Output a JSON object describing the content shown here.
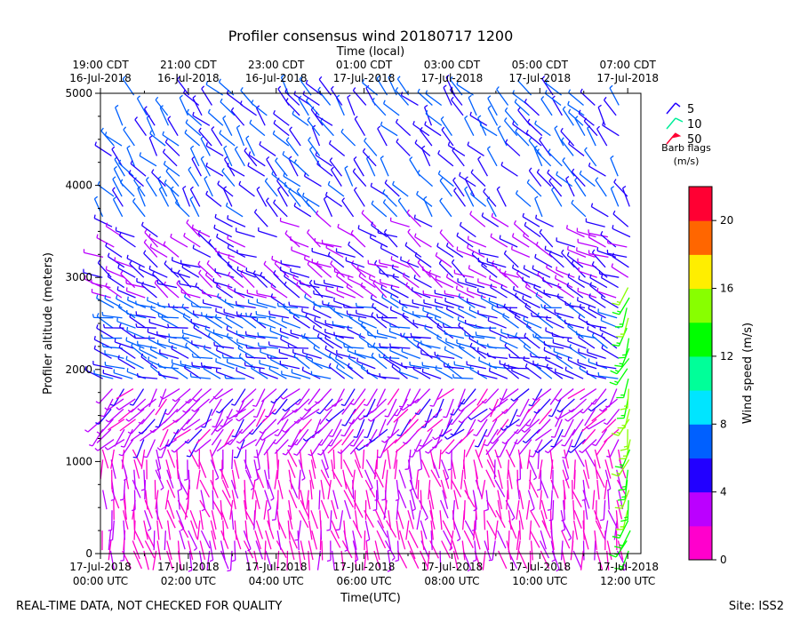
{
  "chart_data": {
    "type": "wind-barb-profile",
    "title": "Profiler consensus wind 20180717 1200",
    "xlabel": "Time(UTC)",
    "xlabel_top": "Time (local)",
    "ylabel": "Profiler altitude (meters)",
    "xlim": [
      0,
      12.3
    ],
    "ylim": [
      0,
      5000
    ],
    "y_ticks": [
      0,
      1000,
      2000,
      3000,
      4000,
      5000
    ],
    "x_ticks_utc": [
      {
        "hour": 0,
        "date": "17-Jul-2018",
        "time": "00:00 UTC"
      },
      {
        "hour": 2,
        "date": "17-Jul-2018",
        "time": "02:00 UTC"
      },
      {
        "hour": 4,
        "date": "17-Jul-2018",
        "time": "04:00 UTC"
      },
      {
        "hour": 6,
        "date": "17-Jul-2018",
        "time": "06:00 UTC"
      },
      {
        "hour": 8,
        "date": "17-Jul-2018",
        "time": "08:00 UTC"
      },
      {
        "hour": 10,
        "date": "17-Jul-2018",
        "time": "10:00 UTC"
      },
      {
        "hour": 12,
        "date": "17-Jul-2018",
        "time": "12:00 UTC"
      }
    ],
    "x_ticks_local": [
      {
        "hour": 0,
        "time": "19:00 CDT",
        "date": "16-Jul-2018"
      },
      {
        "hour": 2,
        "time": "21:00 CDT",
        "date": "16-Jul-2018"
      },
      {
        "hour": 4,
        "time": "23:00 CDT",
        "date": "16-Jul-2018"
      },
      {
        "hour": 6,
        "time": "01:00 CDT",
        "date": "17-Jul-2018"
      },
      {
        "hour": 8,
        "time": "03:00 CDT",
        "date": "17-Jul-2018"
      },
      {
        "hour": 10,
        "time": "05:00 CDT",
        "date": "17-Jul-2018"
      },
      {
        "hour": 12,
        "time": "07:00 CDT",
        "date": "17-Jul-2018"
      }
    ],
    "barb_legend": {
      "items": [
        {
          "label": "5",
          "speed": 5,
          "color": "#2200ff"
        },
        {
          "label": "10",
          "speed": 10,
          "color": "#00ee99"
        },
        {
          "label": "50",
          "speed": 50,
          "color": "#ff0033"
        }
      ],
      "caption_line1": "Barb flags",
      "caption_line2": "(m/s)"
    },
    "colorbar": {
      "label": "Wind speed (m/s)",
      "min": 0,
      "max": 22,
      "ticks": [
        0,
        4,
        8,
        12,
        16,
        20
      ],
      "colors": [
        "#ff00cc",
        "#bb00ff",
        "#2200ff",
        "#0060ff",
        "#00e5ff",
        "#00ff99",
        "#00ff00",
        "#88ff00",
        "#ffee00",
        "#ff6600",
        "#ff0033"
      ]
    },
    "wind_regimes": [
      {
        "alt_from": 0,
        "alt_to": 1200,
        "speed_m_s": 1.5,
        "direction_deg": 170,
        "note": "light southerly, magenta"
      },
      {
        "alt_from": 1200,
        "alt_to": 1900,
        "speed_m_s": 3,
        "direction_deg": 220,
        "note": "purple"
      },
      {
        "alt_from": 1900,
        "alt_to": 2700,
        "speed_m_s": 6,
        "direction_deg": 290,
        "note": "westerly, blue"
      },
      {
        "alt_from": 2700,
        "alt_to": 3600,
        "speed_m_s": 4,
        "direction_deg": 300,
        "note": "purple/blue"
      },
      {
        "alt_from": 3600,
        "alt_to": 5000,
        "speed_m_s": 6,
        "direction_deg": 320,
        "note": "northwesterly, blue/cyan, sparse"
      },
      {
        "alt_from": 0,
        "alt_to": 3000,
        "hour_from": 11.9,
        "hour_to": 12.1,
        "speed_m_s": 14,
        "direction_deg": 200,
        "note": "jet near 12 UTC, green to orange"
      }
    ]
  },
  "footer": {
    "left": "REAL-TIME DATA, NOT CHECKED FOR QUALITY",
    "right": "Site: ISS2"
  }
}
